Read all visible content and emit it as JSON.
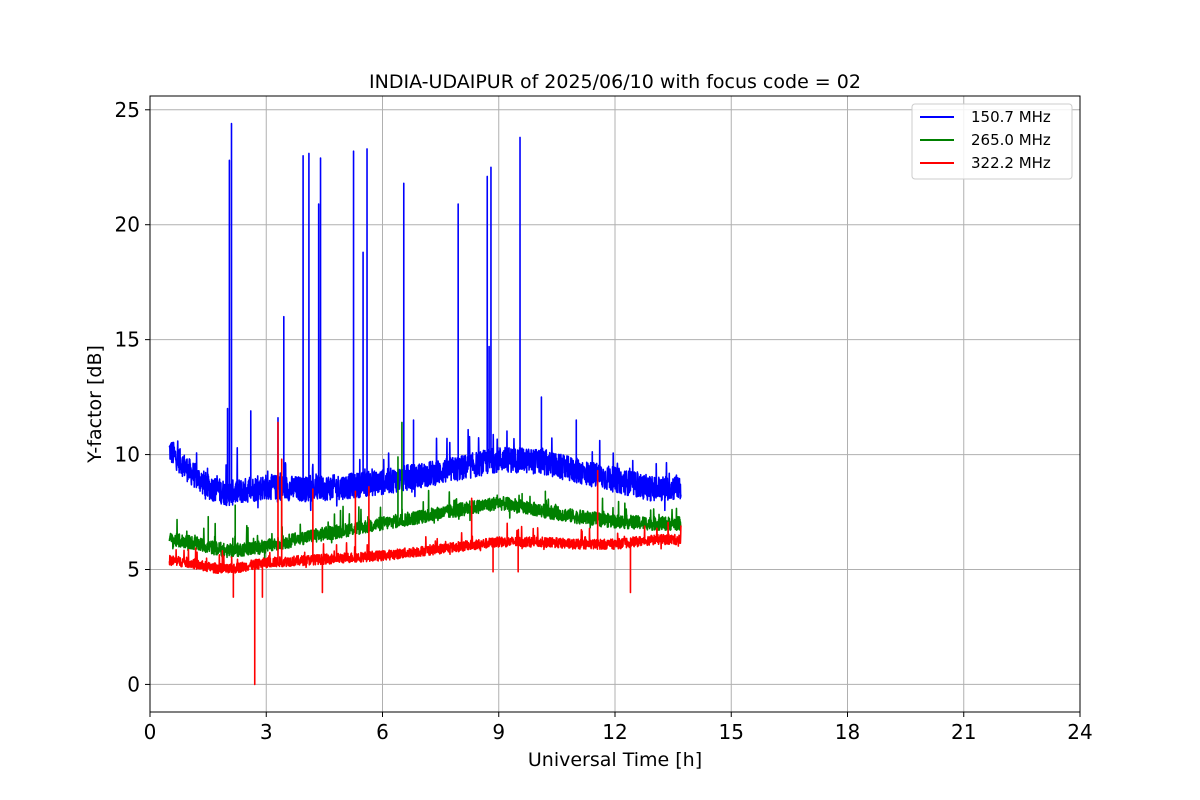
{
  "chart_data": {
    "type": "line",
    "title": "INDIA-UDAIPUR of 2025/06/10 with focus code = 02",
    "xlabel": "Universal Time [h]",
    "ylabel": "Y-factor [dB]",
    "xlim": [
      0,
      24
    ],
    "ylim": [
      -1.2,
      25.6
    ],
    "xticks": [
      0,
      3,
      6,
      9,
      12,
      15,
      18,
      21,
      24
    ],
    "yticks": [
      0,
      5,
      10,
      15,
      20,
      25
    ],
    "grid": true,
    "legend_position": "top-right",
    "series": [
      {
        "name": "150.7 MHz",
        "color": "#0000ff",
        "baseline": [
          [
            0.5,
            10.2
          ],
          [
            1.0,
            9.3
          ],
          [
            1.5,
            8.6
          ],
          [
            2.0,
            8.3
          ],
          [
            3.0,
            8.6
          ],
          [
            4.0,
            8.5
          ],
          [
            5.0,
            8.6
          ],
          [
            6.0,
            8.8
          ],
          [
            7.0,
            9.1
          ],
          [
            8.0,
            9.4
          ],
          [
            9.0,
            9.8
          ],
          [
            10.0,
            9.7
          ],
          [
            11.0,
            9.3
          ],
          [
            12.0,
            8.9
          ],
          [
            13.0,
            8.5
          ],
          [
            13.7,
            8.6
          ]
        ],
        "noise": 0.55,
        "spikes": [
          [
            2.0,
            12.0
          ],
          [
            2.05,
            22.8
          ],
          [
            2.1,
            24.4
          ],
          [
            2.6,
            11.9
          ],
          [
            3.3,
            11.6
          ],
          [
            3.45,
            16.0
          ],
          [
            3.95,
            23.0
          ],
          [
            4.1,
            23.1
          ],
          [
            4.35,
            20.9
          ],
          [
            4.4,
            22.9
          ],
          [
            5.25,
            23.2
          ],
          [
            5.5,
            18.8
          ],
          [
            5.6,
            23.3
          ],
          [
            6.55,
            21.8
          ],
          [
            6.8,
            11.5
          ],
          [
            7.95,
            20.9
          ],
          [
            8.7,
            22.1
          ],
          [
            8.75,
            14.7
          ],
          [
            8.8,
            22.5
          ],
          [
            9.55,
            23.8
          ],
          [
            10.1,
            12.5
          ],
          [
            11.0,
            11.5
          ]
        ],
        "values": []
      },
      {
        "name": "265.0 MHz",
        "color": "#008000",
        "baseline": [
          [
            0.5,
            6.3
          ],
          [
            1.0,
            6.2
          ],
          [
            1.5,
            6.0
          ],
          [
            2.0,
            5.8
          ],
          [
            3.0,
            6.0
          ],
          [
            4.0,
            6.4
          ],
          [
            5.0,
            6.7
          ],
          [
            6.0,
            7.0
          ],
          [
            7.0,
            7.3
          ],
          [
            8.0,
            7.6
          ],
          [
            9.0,
            7.9
          ],
          [
            10.0,
            7.6
          ],
          [
            11.0,
            7.3
          ],
          [
            12.0,
            7.1
          ],
          [
            13.0,
            7.0
          ],
          [
            13.7,
            7.0
          ]
        ],
        "noise": 0.3,
        "spikes": [
          [
            1.5,
            7.3
          ],
          [
            2.2,
            7.8
          ],
          [
            3.4,
            9.0
          ],
          [
            6.4,
            9.9
          ],
          [
            6.5,
            11.4
          ],
          [
            9.6,
            8.3
          ],
          [
            10.2,
            8.4
          ]
        ],
        "values": []
      },
      {
        "name": "322.2 MHz",
        "color": "#ff0000",
        "baseline": [
          [
            0.5,
            5.4
          ],
          [
            1.0,
            5.3
          ],
          [
            1.5,
            5.1
          ],
          [
            2.0,
            5.0
          ],
          [
            3.0,
            5.3
          ],
          [
            4.0,
            5.4
          ],
          [
            5.0,
            5.5
          ],
          [
            6.0,
            5.6
          ],
          [
            7.0,
            5.8
          ],
          [
            8.0,
            6.0
          ],
          [
            9.0,
            6.2
          ],
          [
            10.0,
            6.2
          ],
          [
            11.0,
            6.1
          ],
          [
            12.0,
            6.1
          ],
          [
            13.0,
            6.3
          ],
          [
            13.7,
            6.3
          ]
        ],
        "noise": 0.22,
        "spikes": [
          [
            3.3,
            11.4
          ],
          [
            3.4,
            9.8
          ],
          [
            4.2,
            8.5
          ],
          [
            5.3,
            8.4
          ],
          [
            5.65,
            8.6
          ],
          [
            8.3,
            8.1
          ],
          [
            11.55,
            9.3
          ]
        ],
        "dips": [
          [
            2.15,
            3.8
          ],
          [
            2.7,
            0.0
          ],
          [
            2.9,
            3.8
          ],
          [
            4.45,
            4.0
          ],
          [
            8.85,
            4.9
          ],
          [
            9.5,
            4.9
          ],
          [
            12.4,
            4.0
          ]
        ],
        "values": []
      }
    ]
  }
}
